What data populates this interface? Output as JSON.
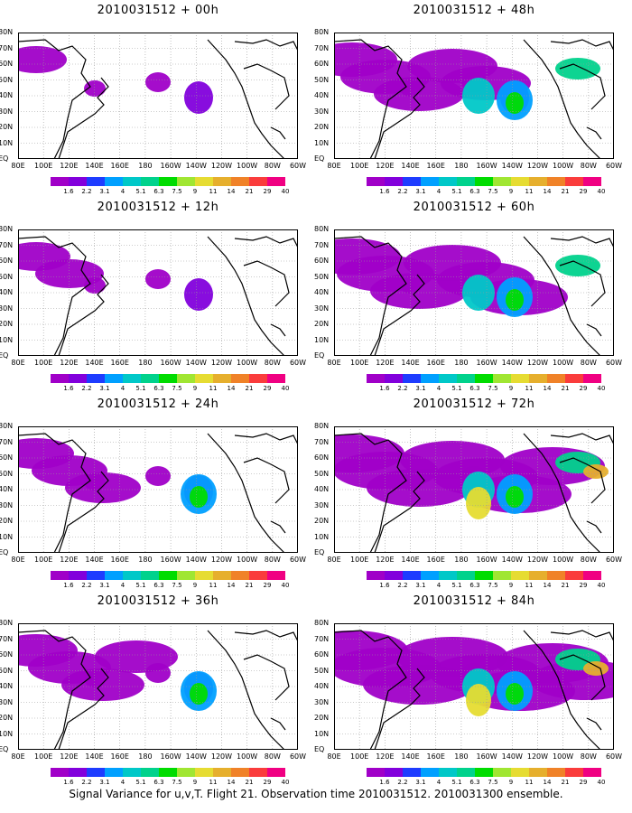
{
  "figure": {
    "caption": "Signal Variance for u,v,T. Flight 21. Observation time 2010031512. 2010031300 ensemble."
  },
  "panels": [
    {
      "title": "2010031512 + 00h",
      "intensity": 1
    },
    {
      "title": "2010031512 + 48h",
      "intensity": 5
    },
    {
      "title": "2010031512 + 12h",
      "intensity": 2
    },
    {
      "title": "2010031512 + 60h",
      "intensity": 6
    },
    {
      "title": "2010031512 + 24h",
      "intensity": 3
    },
    {
      "title": "2010031512 + 72h",
      "intensity": 7
    },
    {
      "title": "2010031512 + 36h",
      "intensity": 4
    },
    {
      "title": "2010031512 + 84h",
      "intensity": 8
    }
  ],
  "axes": {
    "lat_labels": [
      "80N",
      "70N",
      "60N",
      "50N",
      "40N",
      "30N",
      "20N",
      "10N",
      "EQ"
    ],
    "lon_labels": [
      "80E",
      "100E",
      "120E",
      "140E",
      "160E",
      "180",
      "160W",
      "140W",
      "120W",
      "100W",
      "80W",
      "60W"
    ]
  },
  "colorbar": {
    "labels": [
      "1.6",
      "2.2",
      "3.1",
      "4",
      "5.1",
      "6.3",
      "7.5",
      "9",
      "11",
      "14",
      "21",
      "29",
      "40"
    ],
    "colors": [
      "#a000c8",
      "#8200dc",
      "#1e3cff",
      "#00a0ff",
      "#00c8c8",
      "#00d28c",
      "#00dc00",
      "#a0e632",
      "#e6dc32",
      "#e6af2d",
      "#f08228",
      "#fa3c3c",
      "#f00082"
    ]
  }
}
